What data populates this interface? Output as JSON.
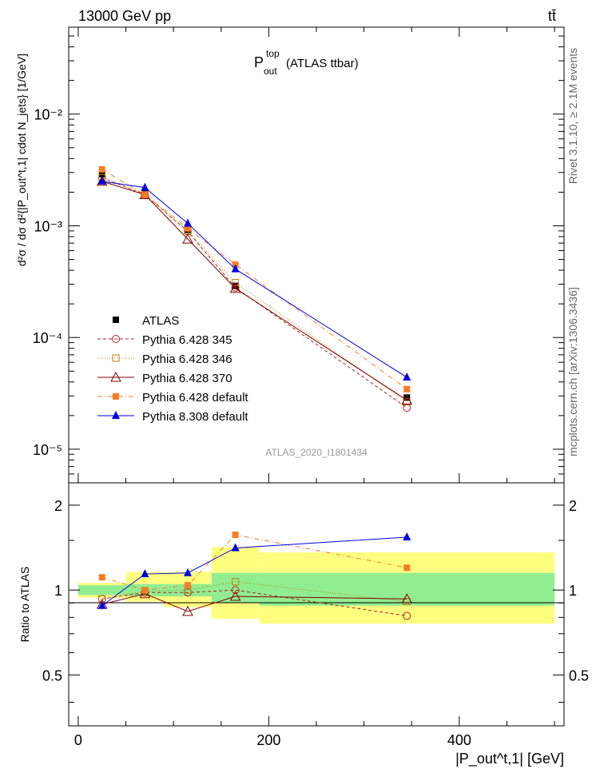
{
  "header": {
    "energy_label": "13000 GeV pp",
    "process_label": "tt̄"
  },
  "side_labels": {
    "rivet": "Rivet 3.1.10, ≥ 2.1M events",
    "mcplots": "mcplots.cern.ch [arXiv:1306.3436]"
  },
  "plot_title": {
    "main": "P",
    "sup": "top",
    "sub": "out",
    "suffix": "(ATLAS ttbar)"
  },
  "analysis_id": "ATLAS_2020_I1801434",
  "colors": {
    "atlas": "#000000",
    "p345": "#b22222",
    "p346": "#b8860b",
    "p370": "#800000",
    "p6def": "#f77c27",
    "p8def": "#0000e0",
    "band_stat": "#90ee90",
    "band_tot": "#ffff7f"
  },
  "chart_data": [
    {
      "type": "line",
      "xlabel": "|P_out^t,1| [GeV]",
      "ylabel": "d²σ / dσ d²{|P_out^t,1| cdot N_jets} [1/GeV]",
      "x_ticks": [
        "0",
        "200",
        "400"
      ],
      "y_ticks": [
        "10⁻⁵",
        "10⁻⁴",
        "10⁻³",
        "10⁻²"
      ],
      "xlim": [
        -10,
        510
      ],
      "ylim": [
        5e-06,
        0.06
      ],
      "yscale": "log",
      "legend_position": "middle-left",
      "x": [
        25,
        70,
        115,
        165,
        345
      ],
      "series": [
        {
          "name": "ATLAS",
          "values": [
            0.0029,
            0.00195,
            0.00092,
            0.00029,
            2.9e-05
          ]
        },
        {
          "name": "Pythia 6.428 345",
          "values": [
            0.0027,
            0.0019,
            0.00089,
            0.00028,
            2.35e-05
          ]
        },
        {
          "name": "Pythia 6.428 346",
          "values": [
            0.0027,
            0.0019,
            0.0009,
            0.00031,
            2.65e-05
          ]
        },
        {
          "name": "Pythia 6.428 370",
          "values": [
            0.0025,
            0.0019,
            0.00076,
            0.000275,
            2.75e-05
          ]
        },
        {
          "name": "Pythia 6.428 default",
          "values": [
            0.0032,
            0.0019,
            0.00095,
            0.00045,
            3.45e-05
          ]
        },
        {
          "name": "Pythia 8.308 default",
          "values": [
            0.0025,
            0.0022,
            0.00105,
            0.00041,
            4.4e-05
          ]
        }
      ]
    },
    {
      "type": "line",
      "ylabel": "Ratio to ATLAS",
      "y_ticks": [
        "0.5",
        "1",
        "2"
      ],
      "ylim": [
        0.33,
        2.4
      ],
      "yscale": "log",
      "x": [
        25,
        70,
        115,
        165,
        345
      ],
      "bins": [
        [
          0,
          50
        ],
        [
          50,
          90
        ],
        [
          90,
          140
        ],
        [
          140,
          190
        ],
        [
          190,
          500
        ]
      ],
      "band_stat": [
        [
          0.96,
          1.04
        ],
        [
          0.95,
          1.05
        ],
        [
          0.95,
          1.05
        ],
        [
          0.9,
          1.15
        ],
        [
          0.88,
          1.15
        ]
      ],
      "band_total": [
        [
          0.94,
          1.06
        ],
        [
          0.91,
          1.16
        ],
        [
          0.87,
          1.16
        ],
        [
          0.79,
          1.42
        ],
        [
          0.76,
          1.36
        ]
      ],
      "series": [
        {
          "name": "Pythia 6.428 345",
          "values": [
            0.93,
            0.98,
            0.98,
            1.0,
            0.81
          ]
        },
        {
          "name": "Pythia 6.428 346",
          "values": [
            0.93,
            0.99,
            1.0,
            1.07,
            0.91
          ]
        },
        {
          "name": "Pythia 6.428 370",
          "values": [
            0.89,
            0.97,
            0.84,
            0.95,
            0.93
          ]
        },
        {
          "name": "Pythia 6.428 default",
          "values": [
            1.11,
            1.0,
            1.04,
            1.57,
            1.2
          ]
        },
        {
          "name": "Pythia 8.308 default",
          "values": [
            0.88,
            1.14,
            1.15,
            1.41,
            1.54
          ]
        }
      ]
    }
  ]
}
